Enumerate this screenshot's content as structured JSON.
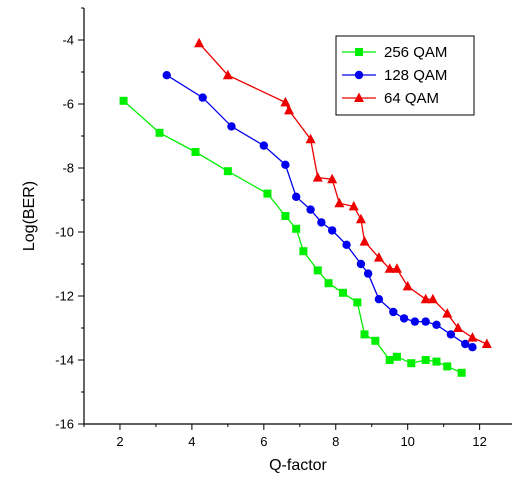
{
  "chart_data": {
    "type": "line",
    "title": "",
    "xlabel": "Q-factor",
    "ylabel": "Log(BER)",
    "xlim": [
      1,
      12.9
    ],
    "ylim": [
      -16,
      -3
    ],
    "xticks": [
      2,
      4,
      6,
      8,
      10,
      12
    ],
    "yticks": [
      -16,
      -14,
      -12,
      -10,
      -8,
      -6,
      -4
    ],
    "grid": false,
    "legend_position": "top-right",
    "series": [
      {
        "name": "256 QAM",
        "color": "#00ee00",
        "marker": "square",
        "x": [
          2.1,
          3.1,
          4.1,
          5.0,
          6.1,
          6.6,
          6.9,
          7.1,
          7.5,
          7.8,
          8.2,
          8.6,
          8.8,
          9.1,
          9.5,
          9.7,
          10.1,
          10.5,
          10.8,
          11.1,
          11.5
        ],
        "y": [
          -5.9,
          -6.9,
          -7.5,
          -8.1,
          -8.8,
          -9.5,
          -9.9,
          -10.6,
          -11.2,
          -11.6,
          -11.9,
          -12.2,
          -13.2,
          -13.4,
          -14.0,
          -13.9,
          -14.1,
          -14.0,
          -14.05,
          -14.2,
          -14.4
        ]
      },
      {
        "name": "128 QAM",
        "color": "#0000ee",
        "marker": "circle",
        "x": [
          3.3,
          4.3,
          5.1,
          6.0,
          6.6,
          6.9,
          7.3,
          7.6,
          7.9,
          8.3,
          8.7,
          8.9,
          9.2,
          9.6,
          9.9,
          10.2,
          10.5,
          10.8,
          11.2,
          11.6,
          11.8
        ],
        "y": [
          -5.1,
          -5.8,
          -6.7,
          -7.3,
          -7.9,
          -8.9,
          -9.3,
          -9.7,
          -9.95,
          -10.4,
          -11.0,
          -11.3,
          -12.1,
          -12.5,
          -12.7,
          -12.8,
          -12.8,
          -12.9,
          -13.2,
          -13.5,
          -13.6
        ]
      },
      {
        "name": "64 QAM",
        "color": "#ee0000",
        "marker": "triangle",
        "x": [
          4.2,
          5.0,
          6.6,
          6.7,
          7.3,
          7.5,
          7.9,
          8.1,
          8.5,
          8.7,
          8.8,
          9.2,
          9.5,
          9.7,
          10.0,
          10.5,
          10.7,
          11.1,
          11.4,
          11.8,
          12.2
        ],
        "y": [
          -4.1,
          -5.1,
          -5.95,
          -6.2,
          -7.1,
          -8.3,
          -8.35,
          -9.1,
          -9.2,
          -9.6,
          -10.3,
          -10.8,
          -11.15,
          -11.15,
          -11.7,
          -12.1,
          -12.1,
          -12.55,
          -13.0,
          -13.3,
          -13.5
        ]
      }
    ]
  }
}
